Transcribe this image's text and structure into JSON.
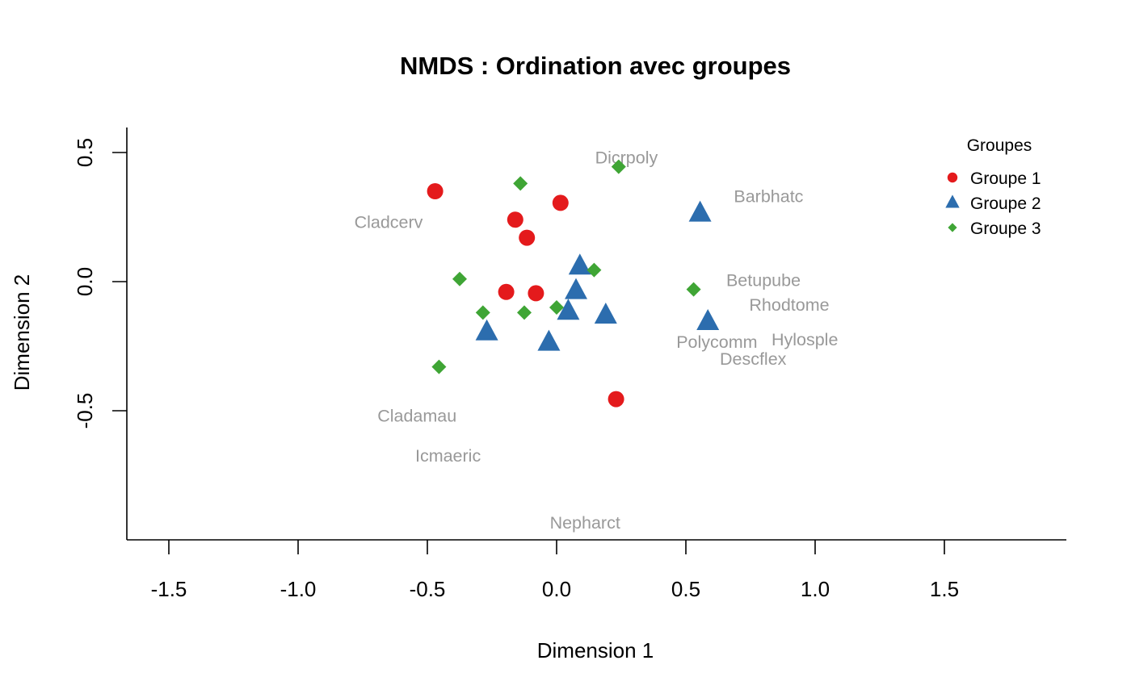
{
  "chart_data": {
    "type": "scatter",
    "title": "NMDS : Ordination avec groupes",
    "xlabel": "Dimension 1",
    "ylabel": "Dimension 2",
    "xlim": [
      -1.65,
      1.95
    ],
    "ylim": [
      -1.0,
      0.6
    ],
    "x_ticks": [
      -1.5,
      -1.0,
      -0.5,
      0.0,
      0.5,
      1.0,
      1.5
    ],
    "x_tick_labels": [
      "-1.5",
      "-1.0",
      "-0.5",
      "0.0",
      "0.5",
      "1.0",
      "1.5"
    ],
    "y_ticks": [
      -0.5,
      0.0,
      0.5
    ],
    "y_tick_labels": [
      "-0.5",
      "0.0",
      "0.5"
    ],
    "grid": false,
    "legend": {
      "title": "Groupes",
      "position": "top-right",
      "entries": [
        "Groupe 1",
        "Groupe 2",
        "Groupe 3"
      ]
    },
    "series": [
      {
        "name": "Groupe 1",
        "color": "#E41A1C",
        "marker": "circle",
        "points": [
          {
            "x": -0.47,
            "y": 0.35
          },
          {
            "x": 0.015,
            "y": 0.305
          },
          {
            "x": -0.16,
            "y": 0.24
          },
          {
            "x": -0.115,
            "y": 0.17
          },
          {
            "x": -0.195,
            "y": -0.04
          },
          {
            "x": -0.08,
            "y": -0.045
          },
          {
            "x": 0.23,
            "y": -0.455
          }
        ]
      },
      {
        "name": "Groupe 2",
        "color": "#2C6DAE",
        "marker": "triangle",
        "points": [
          {
            "x": 0.555,
            "y": 0.265
          },
          {
            "x": 0.09,
            "y": 0.06
          },
          {
            "x": 0.075,
            "y": -0.035
          },
          {
            "x": 0.045,
            "y": -0.115
          },
          {
            "x": 0.19,
            "y": -0.13
          },
          {
            "x": 0.585,
            "y": -0.155
          },
          {
            "x": -0.27,
            "y": -0.195
          },
          {
            "x": -0.03,
            "y": -0.235
          }
        ]
      },
      {
        "name": "Groupe 3",
        "color": "#3FA535",
        "marker": "diamond",
        "points": [
          {
            "x": 0.24,
            "y": 0.445
          },
          {
            "x": -0.14,
            "y": 0.38
          },
          {
            "x": 0.145,
            "y": 0.045
          },
          {
            "x": -0.375,
            "y": 0.01
          },
          {
            "x": 0.53,
            "y": -0.03
          },
          {
            "x": 0.0,
            "y": -0.1
          },
          {
            "x": -0.285,
            "y": -0.12
          },
          {
            "x": -0.125,
            "y": -0.12
          },
          {
            "x": -0.455,
            "y": -0.33
          }
        ]
      }
    ],
    "species": [
      {
        "label": "Dicrpoly",
        "x": 0.27,
        "y": 0.48
      },
      {
        "label": "Barbhatc",
        "x": 0.82,
        "y": 0.33
      },
      {
        "label": "Cladcerv",
        "x": -0.65,
        "y": 0.23
      },
      {
        "label": "Betupube",
        "x": 0.8,
        "y": 0.005
      },
      {
        "label": "Rhodtome",
        "x": 0.9,
        "y": -0.09
      },
      {
        "label": "Hylosple",
        "x": 0.96,
        "y": -0.225
      },
      {
        "label": "Polycomm",
        "x": 0.62,
        "y": -0.235
      },
      {
        "label": "Descflex",
        "x": 0.76,
        "y": -0.3
      },
      {
        "label": "Cladamau",
        "x": -0.54,
        "y": -0.52
      },
      {
        "label": "Icmaeric",
        "x": -0.42,
        "y": -0.675
      },
      {
        "label": "Nepharct",
        "x": 0.11,
        "y": -0.935
      }
    ],
    "species_color": "#999999"
  }
}
